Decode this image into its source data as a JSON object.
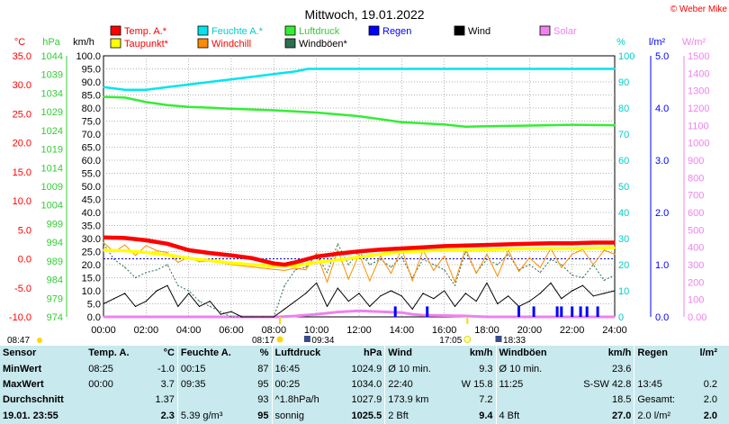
{
  "page": {
    "title": "Mittwoch, 19.01.2022",
    "credit": "© Weber Mike"
  },
  "colors": {
    "temp": "#ff0000",
    "humidity": "#00e5ee",
    "pressure": "#33ee33",
    "dewpoint": "#ffff00",
    "windchill": "#ff8c00",
    "gust": "#2f6f4f",
    "rain": "#0000ff",
    "wind": "#000000",
    "solar": "#ee82ee",
    "axis_temp": "#ff0000",
    "axis_pressure": "#33cc33",
    "axis_humidity": "#00cccc",
    "axis_rain": "#0000ff",
    "axis_solar": "#ee82ee"
  },
  "chart_data": {
    "type": "line",
    "x_unit": "time",
    "x_ticks": [
      "00:00",
      "02:00",
      "04:00",
      "06:00",
      "08:00",
      "10:00",
      "12:00",
      "14:00",
      "16:00",
      "18:00",
      "20:00",
      "22:00",
      "24:00"
    ],
    "axes": {
      "temp": {
        "unit": "°C",
        "range": [
          -10,
          35
        ],
        "ticks": [
          "35.0",
          "30.0",
          "25.0",
          "20.0",
          "15.0",
          "10.0",
          "5.0",
          "0.0",
          "-5.0",
          "-10.0"
        ]
      },
      "pressure": {
        "unit": "hPa",
        "range": [
          974,
          1044
        ],
        "ticks": [
          "1044",
          "1039",
          "1034",
          "1029",
          "1024",
          "1019",
          "1014",
          "1009",
          "1004",
          "999",
          "994",
          "989",
          "984",
          "979",
          "974"
        ]
      },
      "wind": {
        "unit": "km/h",
        "range": [
          0,
          100
        ],
        "ticks": [
          "100.0",
          "95.0",
          "90.0",
          "85.0",
          "80.0",
          "75.0",
          "70.0",
          "65.0",
          "60.0",
          "55.0",
          "50.0",
          "45.0",
          "40.0",
          "35.0",
          "30.0",
          "25.0",
          "20.0",
          "15.0",
          "10.0",
          "5.0",
          "0.0"
        ]
      },
      "humidity": {
        "unit": "%",
        "range": [
          0,
          100
        ],
        "ticks": [
          "100",
          "90",
          "80",
          "70",
          "60",
          "50",
          "40",
          "30",
          "20",
          "10",
          "0"
        ]
      },
      "rain": {
        "unit": "l/m²",
        "range": [
          0,
          5
        ],
        "ticks": [
          "5.0",
          "4.0",
          "3.0",
          "2.0",
          "1.0",
          "0.0"
        ]
      },
      "solar": {
        "unit": "W/m²",
        "range": [
          0,
          1500
        ],
        "ticks": [
          "1500",
          "1400",
          "1300",
          "1200",
          "1100",
          "1000",
          "900",
          "800",
          "700",
          "600",
          "500",
          "400",
          "300",
          "200",
          "100",
          "0.00"
        ]
      }
    },
    "legend": [
      {
        "key": "temp",
        "label": "Temp. A.*"
      },
      {
        "key": "humidity",
        "label": "Feuchte A.*"
      },
      {
        "key": "pressure",
        "label": "Luftdruck"
      },
      {
        "key": "rain",
        "label": "Regen"
      },
      {
        "key": "wind",
        "label": "Wind"
      },
      {
        "key": "solar",
        "label": "Solar"
      },
      {
        "key": "dewpoint",
        "label": "Taupunkt*"
      },
      {
        "key": "windchill",
        "label": "Windchill"
      },
      {
        "key": "gust",
        "label": "Windböen*"
      }
    ],
    "series": [
      {
        "name": "Temp. A.*",
        "key": "temp",
        "axis": "temp",
        "x": [
          0,
          1,
          2,
          3,
          4,
          5,
          6,
          7,
          8,
          8.5,
          9,
          10,
          11,
          12,
          13,
          14,
          15,
          16,
          17,
          18,
          19,
          20,
          21,
          22,
          23,
          24
        ],
        "y": [
          3.7,
          3.6,
          3.2,
          2.6,
          1.5,
          1.0,
          0.6,
          0.1,
          -0.8,
          -1.0,
          -0.6,
          0.4,
          0.9,
          1.3,
          1.6,
          1.8,
          2.0,
          2.2,
          2.3,
          2.4,
          2.5,
          2.6,
          2.7,
          2.7,
          2.8,
          2.8
        ]
      },
      {
        "name": "Feuchte A.*",
        "key": "humidity",
        "axis": "humidity",
        "x": [
          0,
          1,
          2,
          3,
          4,
          5,
          6,
          7,
          8,
          9,
          9.6,
          12,
          16,
          20,
          24
        ],
        "y": [
          88,
          87,
          87,
          88,
          89,
          90,
          91,
          92,
          93,
          94,
          95,
          95,
          95,
          95,
          95
        ]
      },
      {
        "name": "Luftdruck",
        "key": "pressure",
        "axis": "pressure",
        "x": [
          0,
          1,
          2,
          3,
          4,
          5,
          6,
          8,
          10,
          12,
          13,
          14,
          16,
          17,
          18,
          20,
          22,
          24
        ],
        "y": [
          1033.0,
          1032.8,
          1031.6,
          1030.8,
          1030.3,
          1030.1,
          1029.8,
          1029.4,
          1028.8,
          1027.8,
          1027.0,
          1026.2,
          1025.6,
          1025.0,
          1025.1,
          1025.3,
          1025.5,
          1025.4
        ]
      },
      {
        "name": "Taupunkt*",
        "key": "dewpoint",
        "axis": "temp",
        "x": [
          0,
          1,
          2,
          3,
          4,
          5,
          6,
          7,
          8,
          9,
          10,
          11,
          12,
          13,
          14,
          16,
          18,
          20,
          22,
          24
        ],
        "y": [
          1.5,
          1.4,
          1.1,
          0.7,
          0.1,
          -0.3,
          -0.7,
          -1.0,
          -1.3,
          -1.2,
          -0.6,
          -0.2,
          0.3,
          0.8,
          1.2,
          1.5,
          1.6,
          1.8,
          1.8,
          1.9
        ]
      },
      {
        "name": "Windchill",
        "key": "windchill",
        "axis": "temp",
        "x": [
          0,
          0.5,
          1,
          1.5,
          2,
          2.5,
          3,
          3.5,
          4,
          4.5,
          5,
          6,
          7,
          8,
          8.5,
          9,
          9.5,
          10,
          10.5,
          11,
          11.5,
          12,
          12.5,
          13,
          13.5,
          14,
          14.5,
          15,
          15.5,
          16,
          16.5,
          17,
          17.5,
          18,
          18.5,
          19,
          19.5,
          20,
          20.5,
          21,
          21.5,
          22,
          22.5,
          23,
          23.5,
          24
        ],
        "y": [
          2.8,
          1.2,
          2.4,
          0.6,
          2.3,
          1.4,
          1.1,
          -0.6,
          0.3,
          -0.5,
          -0.4,
          -1.0,
          -1.4,
          -1.8,
          -2.0,
          -1.6,
          -1.9,
          1.0,
          -4.0,
          1.5,
          -3.5,
          0.8,
          -3.8,
          0.5,
          -2.5,
          1.8,
          -3.8,
          1.5,
          -2.0,
          0.5,
          -4.0,
          1.8,
          -2.5,
          0.8,
          -3.0,
          1.5,
          -2.2,
          0.2,
          -1.5,
          1.8,
          -1.5,
          0.8,
          1.6,
          -1.0,
          1.5,
          0.8
        ]
      },
      {
        "name": "Windböen*",
        "key": "gust",
        "axis": "wind",
        "x": [
          0,
          0.5,
          1,
          1.5,
          2,
          2.5,
          3,
          3.5,
          4,
          4.5,
          5,
          5.5,
          6,
          6.5,
          7,
          7.5,
          8,
          8.5,
          9,
          9.5,
          10,
          10.5,
          11,
          11.5,
          12,
          12.5,
          13,
          13.5,
          14,
          14.5,
          15,
          15.5,
          16,
          16.5,
          17,
          17.5,
          18,
          18.5,
          19,
          19.5,
          20,
          20.5,
          21,
          21.5,
          22,
          22.5,
          23,
          23.5,
          24
        ],
        "y": [
          28,
          22,
          19,
          15,
          17,
          18,
          20,
          12,
          10,
          6,
          4,
          2,
          0,
          0,
          0,
          0,
          0,
          12,
          18,
          19,
          24,
          17,
          28,
          20,
          25,
          20,
          22,
          19,
          23,
          15,
          22,
          20,
          18,
          12,
          25,
          17,
          22,
          20,
          24,
          18,
          20,
          17,
          22,
          20,
          16,
          15,
          20,
          14,
          16
        ]
      },
      {
        "name": "Wind",
        "key": "wind",
        "axis": "wind",
        "x": [
          0,
          0.5,
          1,
          1.5,
          2,
          2.5,
          3,
          3.5,
          4,
          4.5,
          5,
          5.5,
          6,
          6.5,
          7,
          7.5,
          8,
          8.5,
          9,
          9.5,
          10,
          10.5,
          11,
          11.5,
          12,
          12.5,
          13,
          13.5,
          14,
          14.5,
          15,
          15.5,
          16,
          16.5,
          17,
          17.5,
          18,
          18.5,
          19,
          19.5,
          20,
          20.5,
          21,
          21.5,
          22,
          22.5,
          23,
          23.5,
          24
        ],
        "y": [
          5,
          7,
          9,
          4,
          6,
          10,
          12,
          4,
          9,
          4,
          6,
          1,
          2,
          0,
          0,
          0,
          0,
          3,
          6,
          9,
          13,
          4,
          11,
          6,
          9,
          4,
          8,
          10,
          8,
          3,
          9,
          7,
          10,
          4,
          9,
          6,
          13,
          5,
          8,
          4,
          6,
          9,
          13,
          7,
          10,
          12,
          8,
          9,
          10
        ]
      },
      {
        "name": "Solar",
        "key": "solar",
        "axis": "solar",
        "x": [
          0,
          8.2,
          9,
          10,
          11,
          12,
          13,
          14,
          14.5,
          15,
          16,
          17,
          18,
          24
        ],
        "y": [
          0,
          0,
          5,
          15,
          28,
          35,
          30,
          25,
          15,
          10,
          8,
          5,
          0,
          0
        ]
      }
    ],
    "rain_bars": {
      "name": "Regen",
      "axis": "rain",
      "x": [
        13.7,
        15.2,
        19.5,
        20.2,
        21.3,
        21.5,
        22.0,
        22.4,
        22.7,
        23.2
      ],
      "y": [
        0.2,
        0.2,
        0.2,
        0.2,
        0.2,
        0.2,
        0.2,
        0.2,
        0.2,
        0.2
      ]
    },
    "sun": {
      "sunrise": "08:17",
      "sunset": "17:05",
      "moonrise": "18:33",
      "moonset": "09:34",
      "day_start": "08:47"
    }
  },
  "stats": {
    "headers": [
      "Sensor",
      "Temp. A.",
      "°C",
      "Feuchte A.",
      "%",
      "Luftdruck",
      "hPa",
      "Wind",
      "km/h",
      "Windböen",
      "km/h",
      "Regen",
      "l/m²"
    ],
    "rows": [
      [
        "MinWert",
        "08:25",
        "-1.0",
        "00:15",
        "87",
        "16:45",
        "1024.9",
        "Ø 10 min.",
        "9.3",
        "Ø 10 min.",
        "23.6",
        "",
        ""
      ],
      [
        "MaxWert",
        "00:00",
        "3.7",
        "09:35",
        "95",
        "00:25",
        "1034.0",
        "22:40",
        "W 15.8",
        "11:25",
        "S-SW 42.8",
        "13:45",
        "0.2"
      ],
      [
        "Durchschnitt",
        "",
        "1.37",
        "",
        "93",
        "^1.8hPa/h",
        "1027.9",
        "173.9 km",
        "7.2",
        "",
        "18.5",
        "Gesamt:",
        "2.0"
      ],
      [
        "19.01. 23:55",
        "",
        "2.3",
        "5.39 g/m³",
        "95",
        "sonnig",
        "1025.5",
        "2 Bft",
        "9.4",
        "4 Bft",
        "27.0",
        "2.0 l/m²",
        "2.0"
      ]
    ]
  }
}
